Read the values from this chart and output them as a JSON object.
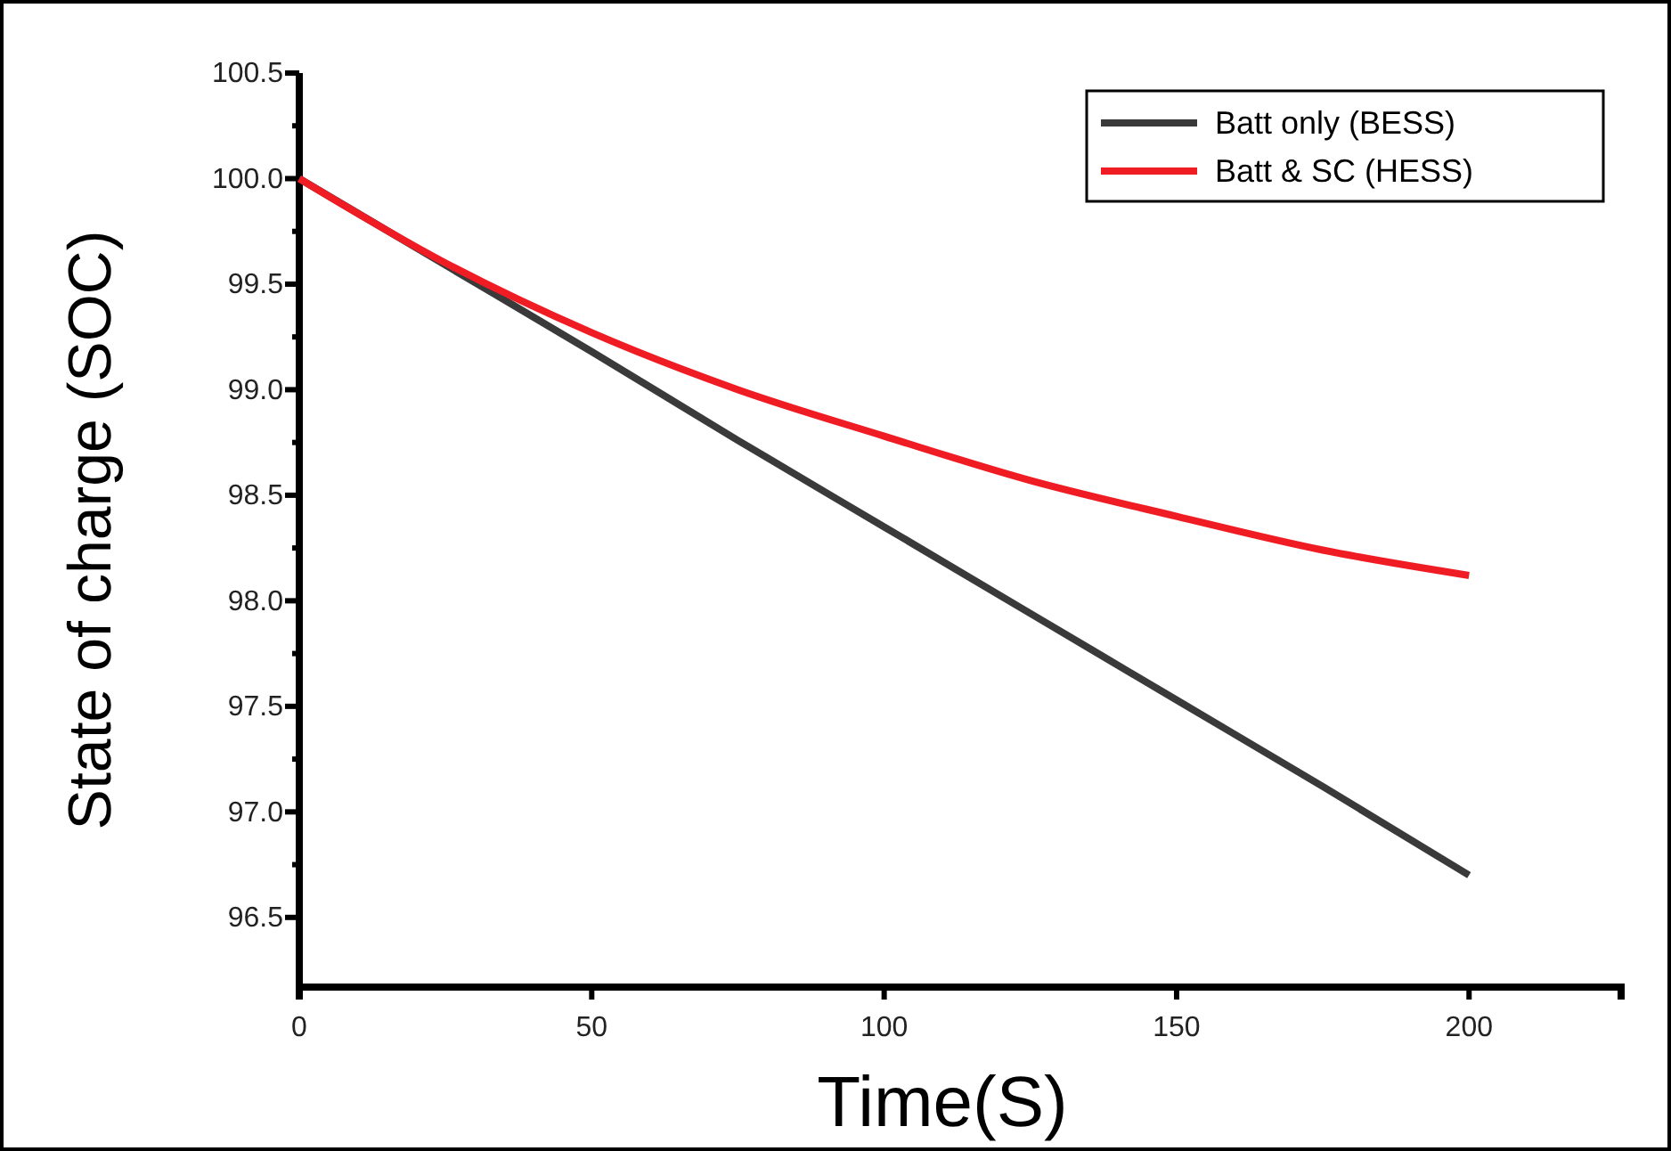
{
  "chart_data": {
    "type": "line",
    "xlabel": "Time(S)",
    "ylabel": "State of charge (SOC)",
    "x": [
      0,
      25,
      50,
      75,
      100,
      125,
      150,
      175,
      200
    ],
    "series": [
      {
        "name": "Batt only (BESS)",
        "color": "#3a3a3a",
        "values": [
          100,
          99.59,
          99.18,
          98.76,
          98.35,
          97.94,
          97.53,
          97.12,
          96.7
        ]
      },
      {
        "name": "Batt & SC (HESS)",
        "color": "#f01c24",
        "values": [
          100,
          99.6,
          99.27,
          99.0,
          98.78,
          98.57,
          98.4,
          98.24,
          98.12
        ]
      }
    ],
    "xlim": [
      0,
      226
    ],
    "xticks": [
      0,
      50,
      100,
      150,
      200
    ],
    "ylim": [
      96.17,
      100.5
    ],
    "yticks": [
      {
        "value": 96.5,
        "label": "96.5"
      },
      {
        "value": 96.75,
        "label": null
      },
      {
        "value": 97,
        "label": "97.0"
      },
      {
        "value": 97.25,
        "label": null
      },
      {
        "value": 97.5,
        "label": "97.5"
      },
      {
        "value": 97.75,
        "label": null
      },
      {
        "value": 98,
        "label": "98.0"
      },
      {
        "value": 98.25,
        "label": null
      },
      {
        "value": 98.5,
        "label": "98.5"
      },
      {
        "value": 98.75,
        "label": null
      },
      {
        "value": 99,
        "label": "99.0"
      },
      {
        "value": 99.25,
        "label": null
      },
      {
        "value": 99.5,
        "label": "99.5"
      },
      {
        "value": 99.75,
        "label": null
      },
      {
        "value": 100,
        "label": "100.0"
      },
      {
        "value": 100.25,
        "label": null
      },
      {
        "value": 100.5,
        "label": "100.5"
      }
    ],
    "legend": "top right",
    "grid": false,
    "line_style": "solid",
    "marker": "none"
  }
}
